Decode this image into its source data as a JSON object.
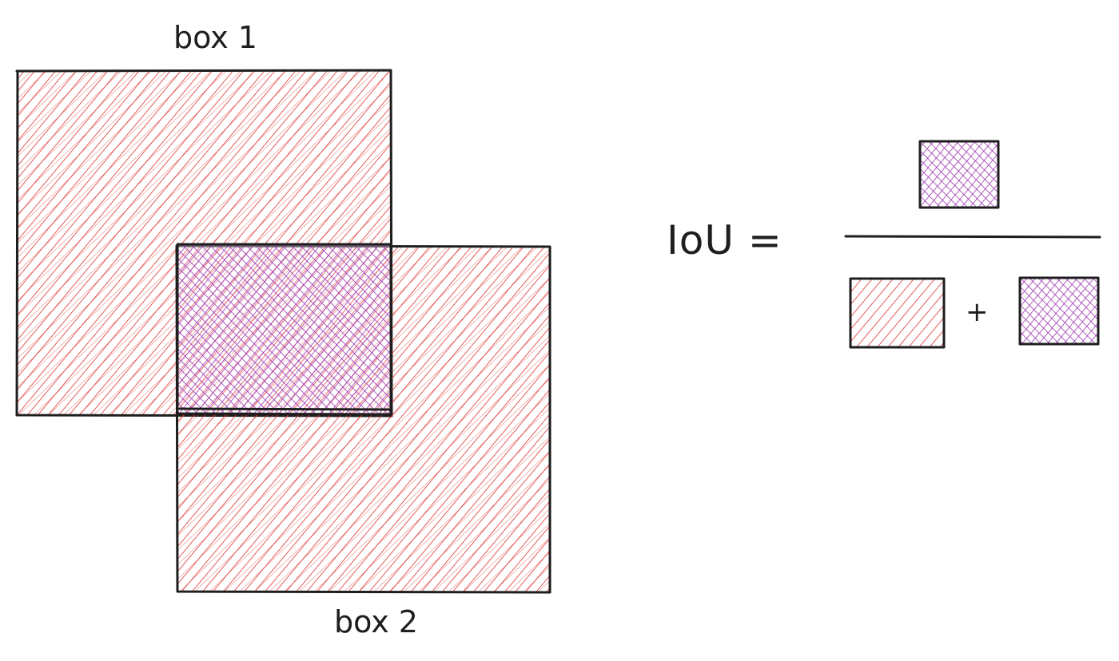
{
  "labels": {
    "box1": "box 1",
    "box2": "box 2",
    "equation": "IoU =",
    "plus": "+"
  },
  "colors": {
    "stroke": "#1e1e1e",
    "union_hatch": "#e03131",
    "intersection_hatch": "#9c36b5"
  }
}
